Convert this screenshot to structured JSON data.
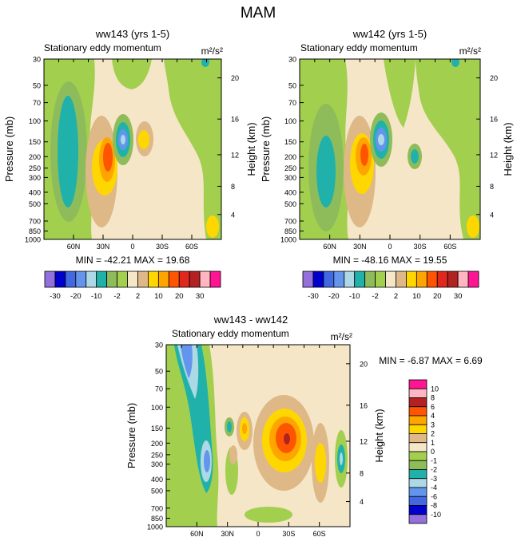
{
  "figure": {
    "title": "MAM"
  },
  "colors": {
    "abs_scale": [
      "#9370db",
      "#0000cd",
      "#4169e1",
      "#6495ed",
      "#add8e6",
      "#20b2aa",
      "#8fbc5a",
      "#a3cf4f",
      "#f5e6c8",
      "#deb887",
      "#ffd700",
      "#ffa500",
      "#ff5500",
      "#e0281f",
      "#b22222",
      "#ffb6c1",
      "#ff1493"
    ],
    "diff_scale": [
      "#9370db",
      "#0000cd",
      "#4169e1",
      "#6495ed",
      "#add8e6",
      "#20b2aa",
      "#8fbc5a",
      "#a3cf4f",
      "#f5e6c8",
      "#deb887",
      "#ffd700",
      "#ffa500",
      "#ff5500",
      "#b22222",
      "#ffb6c1",
      "#ff1493"
    ]
  },
  "panels": [
    {
      "id": "p1",
      "title": "ww143 (yrs 1-5)",
      "left_label": "Stationary eddy momentum",
      "units": "m²/s²",
      "min_max": "MIN = -42.21  MAX =  19.68"
    },
    {
      "id": "p2",
      "title": "ww142 (yrs 1-5)",
      "left_label": "Stationary eddy momentum",
      "units": "m²/s²",
      "min_max": "MIN = -48.16  MAX =  19.55"
    },
    {
      "id": "p3",
      "title": "ww143 - ww142",
      "left_label": "Stationary eddy momentum",
      "units": "m²/s²",
      "min_max": "MIN =  -6.87  MAX =   6.69"
    }
  ],
  "axes": {
    "ylabel_left": "Pressure (mb)",
    "ylabel_right": "Height (km)",
    "pressure_ticks": [
      "30",
      "50",
      "70",
      "100",
      "150",
      "200",
      "250",
      "300",
      "400",
      "500",
      "700",
      "850",
      "1000"
    ],
    "height_ticks": [
      "20",
      "16",
      "12",
      "8",
      "4"
    ],
    "lat_ticks": [
      "60N",
      "30N",
      "0",
      "30S",
      "60S"
    ]
  },
  "colorbars": {
    "horizontal_labels": [
      "-30",
      "-20",
      "-10",
      "-2",
      "2",
      "10",
      "20",
      "30"
    ],
    "vertical_labels": [
      "10",
      "8",
      "6",
      "4",
      "3",
      "2",
      "1",
      "0",
      "-1",
      "-2",
      "-3",
      "-4",
      "-6",
      "-8",
      "-10"
    ]
  },
  "chart_data": [
    {
      "type": "heatmap",
      "title": "ww143 (yrs 1-5)",
      "subtitle": "Stationary eddy momentum",
      "units": "m²/s²",
      "xlabel": "",
      "ylabel": "Pressure (mb)",
      "ylabel_right": "Height (km)",
      "xlim": [
        90,
        -90
      ],
      "ylim": [
        1000,
        30
      ],
      "min": -42.21,
      "max": 19.68,
      "contour_levels": [
        -30,
        -25,
        -20,
        -15,
        -10,
        -5,
        -2,
        0,
        2,
        5,
        10,
        15,
        20,
        25,
        30
      ],
      "features": [
        {
          "lat": 75,
          "p": 180,
          "value": -12
        },
        {
          "lat": 28,
          "p": 200,
          "value": 18
        },
        {
          "lat": 15,
          "p": 150,
          "value": -40
        },
        {
          "lat": -8,
          "p": 150,
          "value": 8
        },
        {
          "lat": -60,
          "p": 30,
          "value": -6
        }
      ]
    },
    {
      "type": "heatmap",
      "title": "ww142 (yrs 1-5)",
      "subtitle": "Stationary eddy momentum",
      "units": "m²/s²",
      "xlabel": "",
      "ylabel": "Pressure (mb)",
      "ylabel_right": "Height (km)",
      "xlim": [
        90,
        -90
      ],
      "ylim": [
        1000,
        30
      ],
      "min": -48.16,
      "max": 19.55,
      "contour_levels": [
        -30,
        -25,
        -20,
        -15,
        -10,
        -5,
        -2,
        0,
        2,
        5,
        10,
        15,
        20,
        25,
        30
      ],
      "features": [
        {
          "lat": 72,
          "p": 200,
          "value": -12
        },
        {
          "lat": 30,
          "p": 190,
          "value": 18
        },
        {
          "lat": 17,
          "p": 150,
          "value": -45
        },
        {
          "lat": -5,
          "p": 200,
          "value": -6
        },
        {
          "lat": -55,
          "p": 30,
          "value": -6
        }
      ]
    },
    {
      "type": "heatmap",
      "title": "ww143 - ww142",
      "subtitle": "Stationary eddy momentum",
      "units": "m²/s²",
      "xlabel": "",
      "ylabel": "Pressure (mb)",
      "ylabel_right": "Height (km)",
      "xlim": [
        90,
        -90
      ],
      "ylim": [
        1000,
        30
      ],
      "min": -6.87,
      "max": 6.69,
      "contour_levels": [
        -10,
        -8,
        -6,
        -4,
        -3,
        -2,
        -1,
        0,
        1,
        2,
        3,
        4,
        6,
        8,
        10
      ],
      "features": [
        {
          "lat": 78,
          "p": 40,
          "value": -6
        },
        {
          "lat": 62,
          "p": 300,
          "value": -4
        },
        {
          "lat": 22,
          "p": 150,
          "value": 3
        },
        {
          "lat": -30,
          "p": 200,
          "value": 6.69
        },
        {
          "lat": -62,
          "p": 300,
          "value": 2
        },
        {
          "lat": -80,
          "p": 280,
          "value": -3
        }
      ]
    }
  ]
}
